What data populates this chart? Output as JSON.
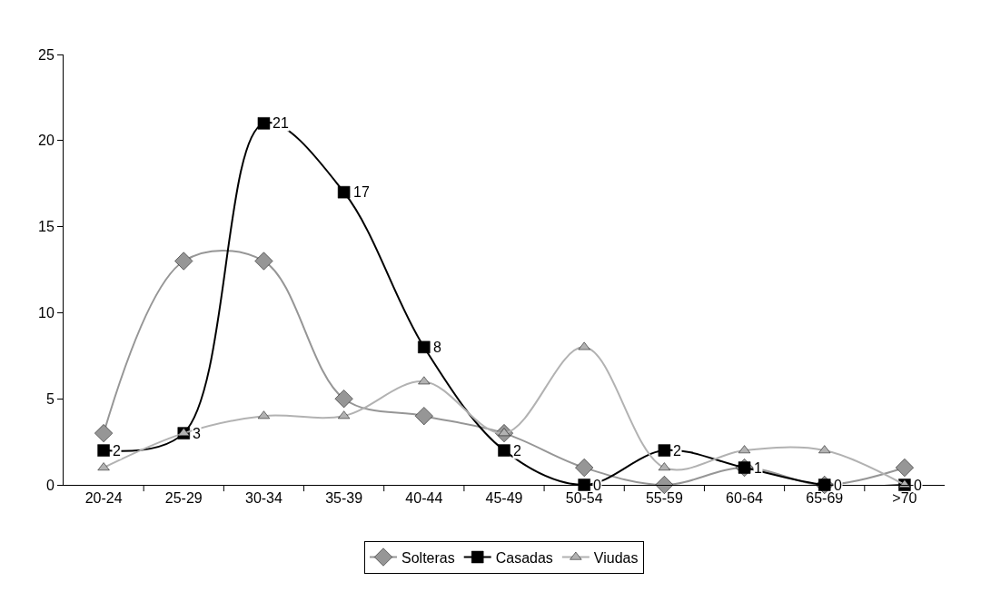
{
  "chart_data": {
    "type": "line",
    "categories": [
      "20-24",
      "25-29",
      "30-34",
      "35-39",
      "40-44",
      "45-49",
      "50-54",
      "55-59",
      "60-64",
      "65-69",
      ">70"
    ],
    "series": [
      {
        "name": "Solteras",
        "color": "#969696",
        "marker": "diamond",
        "values": [
          3,
          13,
          13,
          5,
          4,
          3,
          1,
          0,
          1,
          0,
          1
        ]
      },
      {
        "name": "Casadas",
        "color": "#000000",
        "marker": "square",
        "values": [
          2,
          3,
          21,
          17,
          8,
          2,
          0,
          2,
          1,
          0,
          0
        ],
        "value_labels": [
          "2",
          "3",
          "21",
          "17",
          "8",
          "2",
          "0",
          "2",
          "1",
          "0",
          "0"
        ]
      },
      {
        "name": "Viudas",
        "color": "#b2b2b2",
        "marker": "triangle",
        "values": [
          1,
          3,
          4,
          4,
          6,
          3,
          8,
          1,
          2,
          2,
          0
        ]
      }
    ],
    "ylim": [
      0,
      25
    ],
    "yticks": [
      0,
      5,
      10,
      15,
      20,
      25
    ],
    "grid": false,
    "legend": "bottom",
    "line_style": "solid"
  }
}
